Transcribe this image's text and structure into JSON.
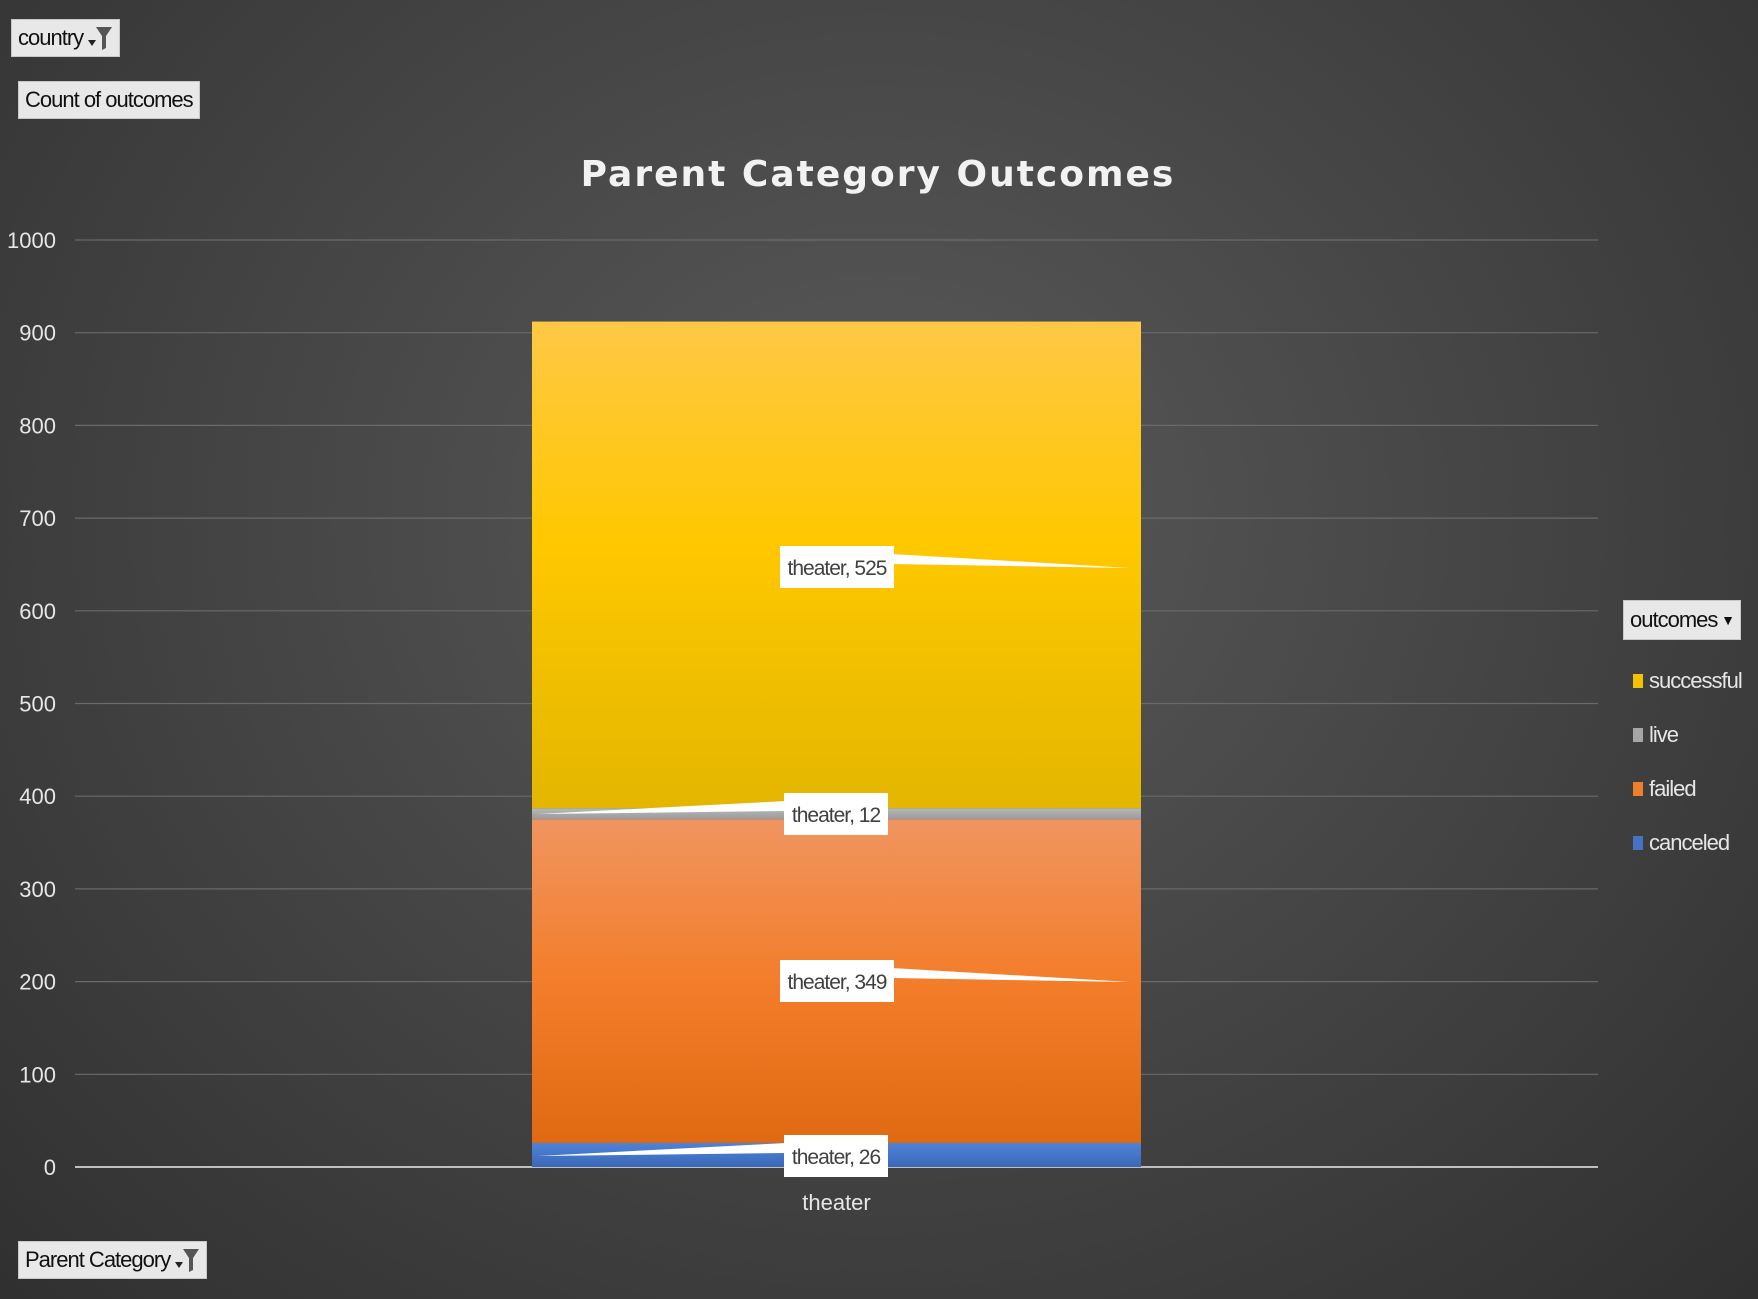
{
  "filters": {
    "country_label": "country",
    "values_label": "Count of outcomes",
    "axis_field_label": "Parent Category"
  },
  "legend": {
    "header": "outcomes",
    "items": [
      {
        "label": "successful",
        "color": "#f2c200"
      },
      {
        "label": "live",
        "color": "#a6a6a6"
      },
      {
        "label": "failed",
        "color": "#ef7f2a"
      },
      {
        "label": "canceled",
        "color": "#4472c4"
      }
    ]
  },
  "chart_data": {
    "type": "bar",
    "stacked": true,
    "title": "Parent Category Outcomes",
    "categories": [
      "theater"
    ],
    "series": [
      {
        "name": "canceled",
        "values": [
          26
        ],
        "color": "#4472c4",
        "label": "theater, 26"
      },
      {
        "name": "failed",
        "values": [
          349
        ],
        "color": "#ef7f2a",
        "label": "theater, 349"
      },
      {
        "name": "live",
        "values": [
          12
        ],
        "color": "#a6a6a6",
        "label": "theater, 12"
      },
      {
        "name": "successful",
        "values": [
          525
        ],
        "color": "#f2c200",
        "label": "theater, 525"
      }
    ],
    "ylim": [
      0,
      1000
    ],
    "yticks": [
      0,
      100,
      200,
      300,
      400,
      500,
      600,
      700,
      800,
      900,
      1000
    ],
    "grid": true,
    "legend_position": "right"
  }
}
